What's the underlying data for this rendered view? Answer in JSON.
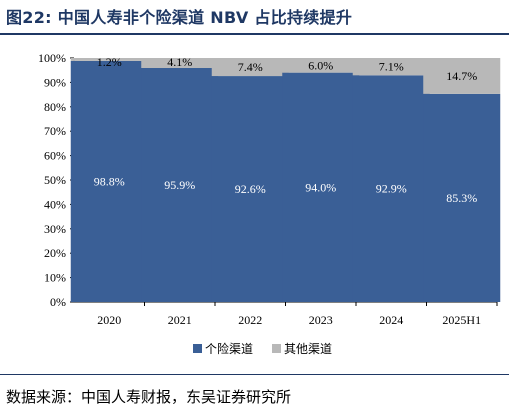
{
  "header": {
    "title": "图22:  中国人寿非个险渠道 NBV 占比持续提升"
  },
  "footer": {
    "source": "数据来源：中国人寿财报，东吴证券研究所"
  },
  "colors": {
    "series1": "#3a5f96",
    "series2": "#b8b8b8",
    "rule": "#1f3864"
  },
  "chart_data": {
    "type": "bar",
    "stacked": true,
    "categories": [
      "2020",
      "2021",
      "2022",
      "2023",
      "2024",
      "2025H1"
    ],
    "series": [
      {
        "name": "个险渠道",
        "values": [
          98.8,
          95.9,
          92.6,
          94.0,
          92.9,
          85.3
        ],
        "labels": [
          "98.8%",
          "95.9%",
          "92.6%",
          "94.0%",
          "92.9%",
          "85.3%"
        ]
      },
      {
        "name": "其他渠道",
        "values": [
          1.2,
          4.1,
          7.4,
          6.0,
          7.1,
          14.7
        ],
        "labels": [
          "1.2%",
          "4.1%",
          "7.4%",
          "6.0%",
          "7.1%",
          "14.7%"
        ]
      }
    ],
    "yticks": [
      "0%",
      "10%",
      "20%",
      "30%",
      "40%",
      "50%",
      "60%",
      "70%",
      "80%",
      "90%",
      "100%"
    ],
    "ylim": [
      0,
      100
    ],
    "legend_position": "bottom"
  }
}
